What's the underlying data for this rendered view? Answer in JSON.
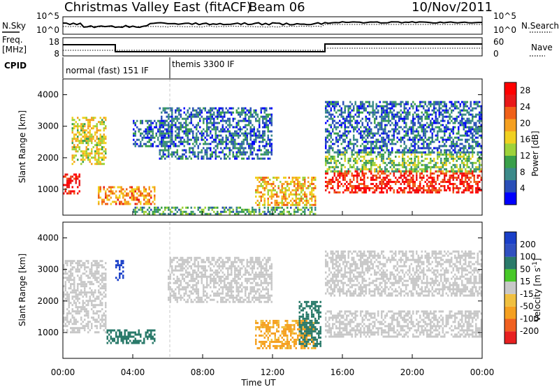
{
  "header": {
    "title": "Christmas Valley East (fitACF)",
    "beam": "Beam 06",
    "date": "10/Nov/2011"
  },
  "noise_panel": {
    "left_label": "N.Sky",
    "left_ticks": [
      "10^5",
      "10^0"
    ],
    "right_ticks": [
      "10^5",
      "10^0"
    ],
    "right_label": "N.Search"
  },
  "freq_panel": {
    "label_line1": "Freq.",
    "label_line2": "[MHz]",
    "left_ticks": [
      "18",
      "8"
    ],
    "right_ticks": [
      "60",
      "0"
    ],
    "right_label": "Nave"
  },
  "cpid_panel": {
    "label": "CPID",
    "segment1": "normal (fast) 151 IF",
    "segment2": "themis 3300 IF"
  },
  "xaxis": {
    "label": "Time UT",
    "ticks": [
      "00:00",
      "04:00",
      "08:00",
      "12:00",
      "16:00",
      "20:00",
      "00:00"
    ]
  },
  "colors": {
    "power": [
      "#0000ff",
      "#2a4fb8",
      "#3c8a8a",
      "#3aa04a",
      "#9ed23a",
      "#f0d020",
      "#f5a020",
      "#f06018",
      "#e81818",
      "#ff0000"
    ],
    "velocity": [
      "#1a3fc8",
      "#3050c0",
      "#2a7a6a",
      "#48c828",
      "#c8c8c8",
      "#f0c040",
      "#f5a020",
      "#f06020",
      "#e82020"
    ],
    "ground_scatter": "#c8c8c8"
  },
  "chart_data": [
    {
      "type": "heatmap",
      "title": "Power",
      "ylabel": "Slant Range [km]",
      "xlabel": "Time UT",
      "xlim": [
        0,
        24
      ],
      "ylim": [
        180,
        4500
      ],
      "yticks": [
        "1000",
        "2000",
        "3000",
        "4000"
      ],
      "colorbar": {
        "label": "Power [dB]",
        "ticks": [
          "4",
          "8",
          "12",
          "16",
          "20",
          "24",
          "28"
        ],
        "range": [
          0,
          30
        ]
      },
      "regions": [
        {
          "t0": 0.0,
          "t1": 1.0,
          "r0": 900,
          "r1": 1500,
          "level": 26
        },
        {
          "t0": 0.5,
          "t1": 2.5,
          "r0": 1800,
          "r1": 3300,
          "level": 16
        },
        {
          "t0": 2.0,
          "t1": 5.3,
          "r0": 550,
          "r1": 1100,
          "level": 20
        },
        {
          "t0": 4.0,
          "t1": 6.2,
          "r0": 2400,
          "r1": 3200,
          "level": 6
        },
        {
          "t0": 5.5,
          "t1": 12.0,
          "r0": 2000,
          "r1": 3600,
          "level": 6
        },
        {
          "t0": 4.0,
          "t1": 14.5,
          "r0": 200,
          "r1": 450,
          "level": 10
        },
        {
          "t0": 11.0,
          "t1": 14.5,
          "r0": 500,
          "r1": 1400,
          "level": 18
        },
        {
          "t0": 15.0,
          "t1": 24.0,
          "r0": 900,
          "r1": 1600,
          "level": 26
        },
        {
          "t0": 15.0,
          "t1": 24.0,
          "r0": 1600,
          "r1": 2200,
          "level": 12
        },
        {
          "t0": 15.0,
          "t1": 24.0,
          "r0": 2200,
          "r1": 3800,
          "level": 6
        }
      ]
    },
    {
      "type": "heatmap",
      "title": "Velocity",
      "ylabel": "Slant Range [km]",
      "xlabel": "Time UT",
      "xlim": [
        0,
        24
      ],
      "ylim": [
        180,
        4500
      ],
      "yticks": [
        "1000",
        "2000",
        "3000",
        "4000"
      ],
      "colorbar": {
        "label": "Velocity [m s^-1]",
        "ticks": [
          "200",
          "100",
          "50",
          "15",
          "-15",
          "-50",
          "-100",
          "-200"
        ]
      },
      "regions": [
        {
          "t0": 0.0,
          "t1": 2.5,
          "r0": 1000,
          "r1": 3300,
          "velocity": 0,
          "ground": true
        },
        {
          "t0": 3.0,
          "t1": 3.5,
          "r0": 2700,
          "r1": 3300,
          "velocity": 200
        },
        {
          "t0": 2.5,
          "t1": 5.3,
          "r0": 700,
          "r1": 1100,
          "velocity": 50
        },
        {
          "t0": 6.0,
          "t1": 12.0,
          "r0": 2000,
          "r1": 3400,
          "velocity": 0,
          "ground": true
        },
        {
          "t0": 11.0,
          "t1": 14.5,
          "r0": 500,
          "r1": 1400,
          "velocity": -60
        },
        {
          "t0": 13.5,
          "t1": 14.8,
          "r0": 600,
          "r1": 2000,
          "velocity": 50
        },
        {
          "t0": 15.0,
          "t1": 24.0,
          "r0": 900,
          "r1": 1700,
          "velocity": 0,
          "ground": true
        },
        {
          "t0": 15.0,
          "t1": 24.0,
          "r0": 2200,
          "r1": 3600,
          "velocity": 0,
          "ground": true
        }
      ]
    }
  ]
}
